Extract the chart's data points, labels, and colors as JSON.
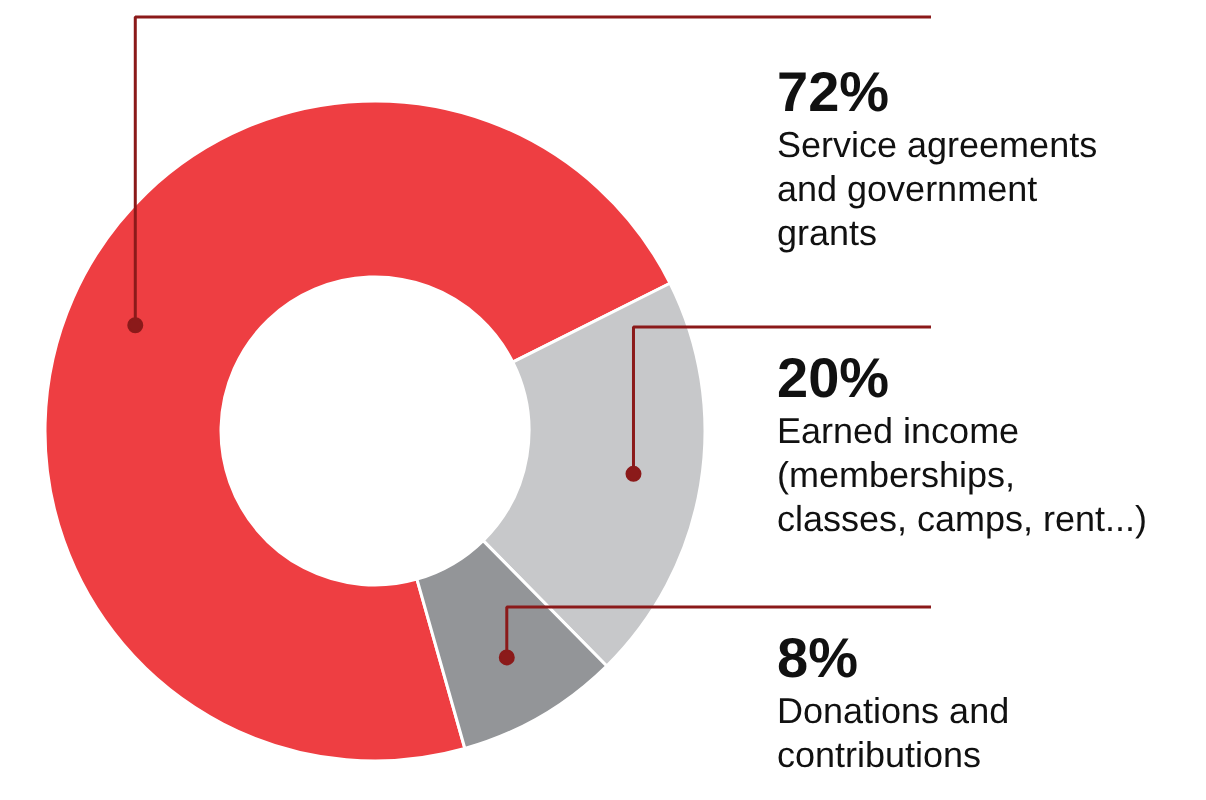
{
  "chart_data": {
    "type": "donut",
    "categories": [
      "Service agreements\nand government\ngrants",
      "Earned income\n(memberships,\nclasses, camps, rent...)",
      "Donations and\ncontributions"
    ],
    "values": [
      72,
      20,
      8
    ],
    "value_labels": [
      "72%",
      "20%",
      "8%"
    ],
    "colors": [
      "#ee3e42",
      "#c7c8ca",
      "#939598"
    ]
  }
}
